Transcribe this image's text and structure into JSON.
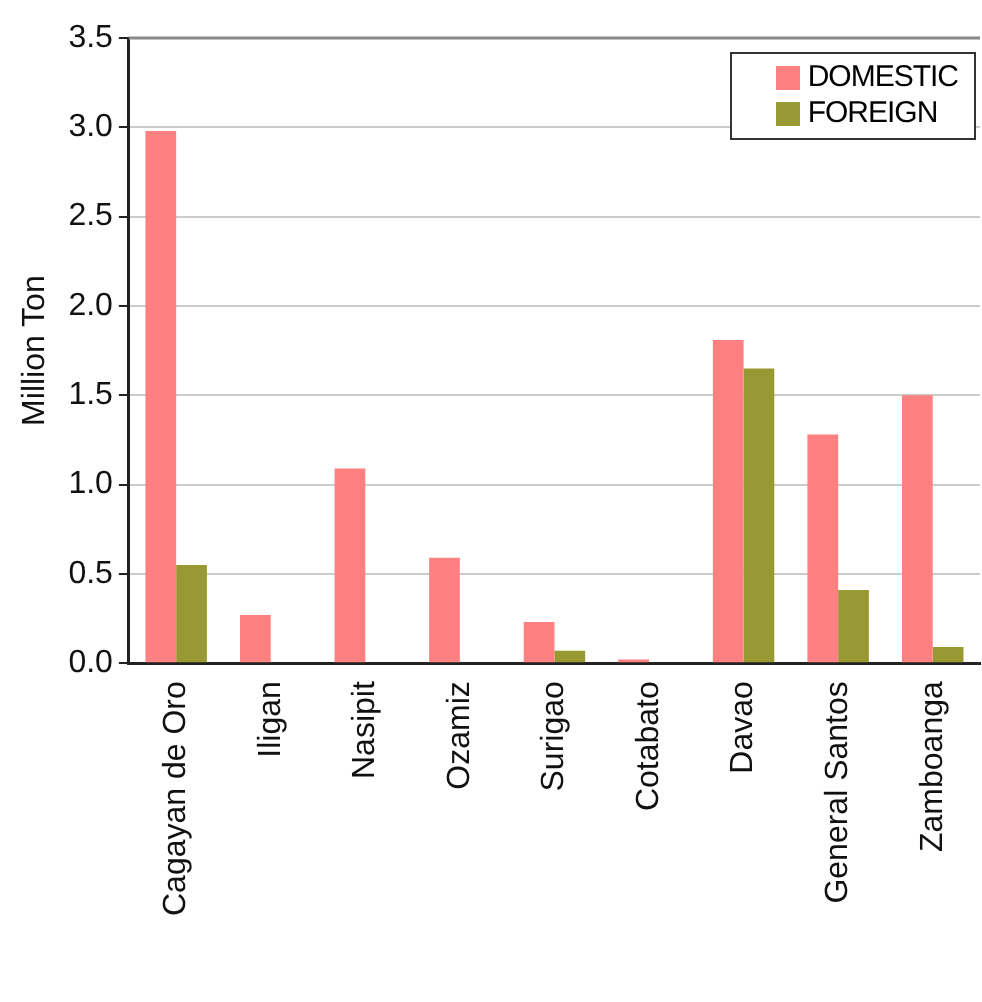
{
  "chart_data": {
    "type": "bar",
    "ylabel": "Million Ton",
    "categories": [
      "Cagayan de Oro",
      "Iligan",
      "Nasipit",
      "Ozamiz",
      "Surigao",
      "Cotabato",
      "Davao",
      "General Santos",
      "Zamboanga"
    ],
    "series": [
      {
        "name": "DOMESTIC",
        "color": "#ff8080",
        "values": [
          2.98,
          0.27,
          1.09,
          0.59,
          0.23,
          0.02,
          1.81,
          1.28,
          1.5
        ]
      },
      {
        "name": "FOREIGN",
        "color": "#999933",
        "values": [
          0.55,
          0,
          0,
          0,
          0.07,
          0,
          1.65,
          0.41,
          0.09
        ]
      }
    ],
    "ylim": [
      0,
      3.5
    ],
    "yticks": [
      {
        "value": 0,
        "label": "0.0"
      },
      0.5,
      {
        "value": 1,
        "label": "1.0"
      },
      1.5,
      {
        "value": 2,
        "label": "2.0"
      },
      2.5,
      {
        "value": 3,
        "label": "3.0"
      },
      3.5
    ],
    "grid": "y",
    "legend": "top right"
  }
}
